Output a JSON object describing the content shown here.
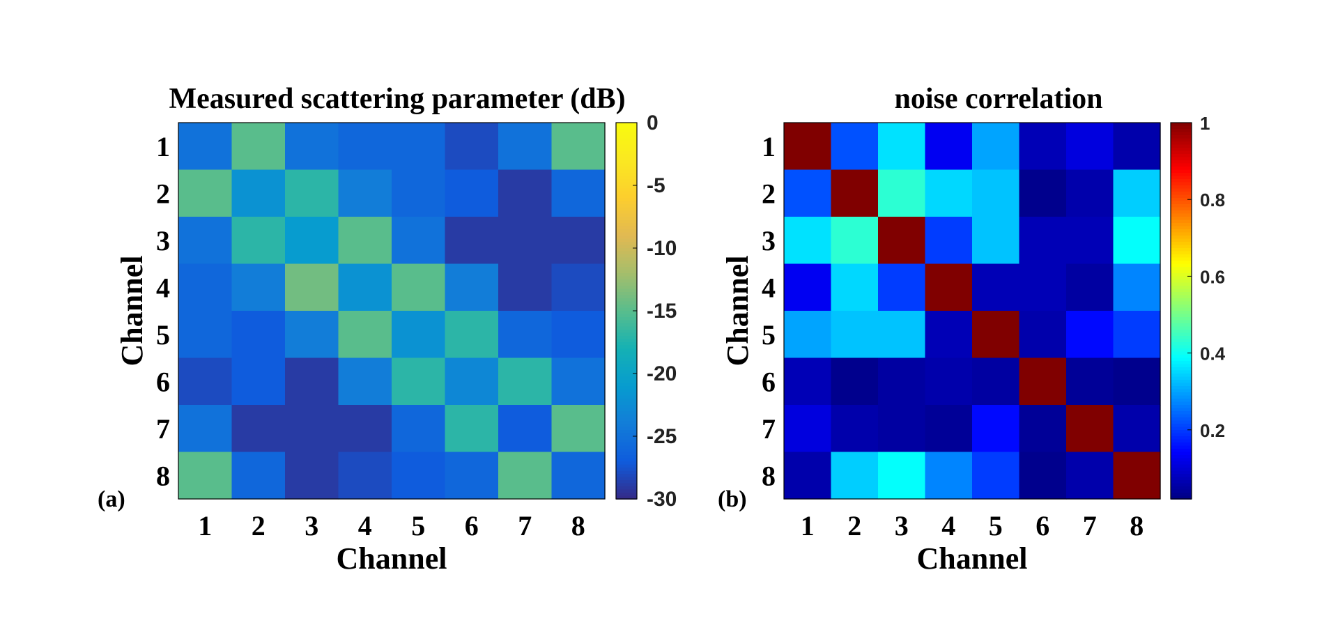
{
  "chart_data": [
    {
      "type": "heatmap",
      "panel_label": "(a)",
      "title": "Measured scattering parameter (dB)",
      "xlabel": "Channel",
      "ylabel": "Channel",
      "x_ticks": [
        "1",
        "2",
        "3",
        "4",
        "5",
        "6",
        "7",
        "8"
      ],
      "y_ticks": [
        "1",
        "2",
        "3",
        "4",
        "5",
        "6",
        "7",
        "8"
      ],
      "colormap": "parula",
      "clim": [
        -30,
        0
      ],
      "colorbar_ticks": [
        "0",
        "-5",
        "-10",
        "-15",
        "-20",
        "-25",
        "-30"
      ],
      "colorbar_tick_values": [
        0,
        -5,
        -10,
        -15,
        -20,
        -25,
        -30
      ],
      "values": [
        [
          -25,
          -15,
          -25,
          -26,
          -26,
          -28,
          -25,
          -15
        ],
        [
          -15,
          -22,
          -17,
          -24,
          -26,
          -27,
          -29,
          -26
        ],
        [
          -25,
          -17,
          -21,
          -15,
          -25,
          -29,
          -29,
          -29
        ],
        [
          -26,
          -24,
          -14,
          -22,
          -15,
          -24,
          -29,
          -28
        ],
        [
          -26,
          -27,
          -24,
          -15,
          -22,
          -17,
          -26,
          -27
        ],
        [
          -28,
          -27,
          -29,
          -24,
          -17,
          -23,
          -17,
          -25
        ],
        [
          -25,
          -29,
          -29,
          -29,
          -26,
          -17,
          -27,
          -15
        ],
        [
          -15,
          -26,
          -29,
          -28,
          -27,
          -26,
          -15,
          -26
        ]
      ]
    },
    {
      "type": "heatmap",
      "panel_label": "(b)",
      "title": "noise correlation",
      "xlabel": "Channel",
      "ylabel": "Channel",
      "x_ticks": [
        "1",
        "2",
        "3",
        "4",
        "5",
        "6",
        "7",
        "8"
      ],
      "y_ticks": [
        "1",
        "2",
        "3",
        "4",
        "5",
        "6",
        "7",
        "8"
      ],
      "colormap": "jet",
      "clim": [
        0.02,
        1
      ],
      "colorbar_ticks": [
        "1",
        "0.8",
        "0.6",
        "0.4",
        "0.2"
      ],
      "colorbar_tick_values": [
        1,
        0.8,
        0.6,
        0.4,
        0.2
      ],
      "values": [
        [
          1.0,
          0.22,
          0.36,
          0.13,
          0.3,
          0.07,
          0.11,
          0.06
        ],
        [
          0.22,
          1.0,
          0.43,
          0.35,
          0.33,
          0.03,
          0.06,
          0.34
        ],
        [
          0.36,
          0.43,
          1.0,
          0.2,
          0.33,
          0.07,
          0.07,
          0.39
        ],
        [
          0.13,
          0.35,
          0.2,
          1.0,
          0.07,
          0.07,
          0.05,
          0.27
        ],
        [
          0.3,
          0.33,
          0.33,
          0.07,
          1.0,
          0.06,
          0.15,
          0.2
        ],
        [
          0.07,
          0.03,
          0.05,
          0.06,
          0.05,
          1.0,
          0.04,
          0.03
        ],
        [
          0.11,
          0.06,
          0.05,
          0.04,
          0.15,
          0.04,
          1.0,
          0.06
        ],
        [
          0.06,
          0.34,
          0.39,
          0.27,
          0.2,
          0.03,
          0.06,
          1.0
        ]
      ]
    }
  ]
}
